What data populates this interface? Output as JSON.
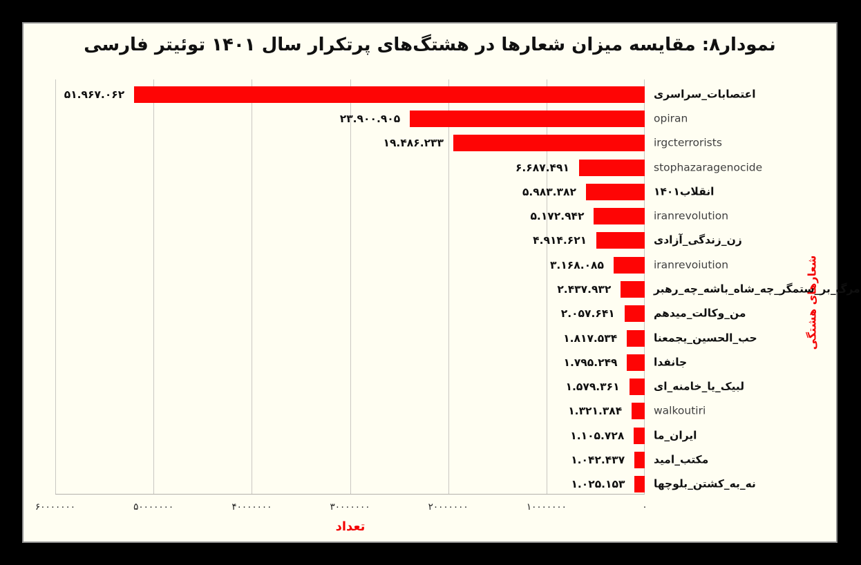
{
  "colors": {
    "frame": "#000000",
    "page_background": "#fffef2",
    "page_border": "#8f8f8f",
    "bar": "#fe0505",
    "accent_red_text": "#f30202",
    "gridline": "#c9c7c2",
    "text": "#101010",
    "latin_text": "#3f3f3f"
  },
  "chart_data": {
    "type": "bar",
    "orientation": "horizontal",
    "value_axis_direction": "rtl-zero-at-right",
    "grid": true,
    "legend": false,
    "title": "نمودار۸: مقایسه میزان شعارها در هشتگ‌های پرتکرار سال ۱۴۰۱ توئیتر فارسی",
    "xlabel": "تعداد",
    "ylabel": "شعارهای هشتگی",
    "xlim": [
      0,
      60000000
    ],
    "x_ticks": [
      {
        "value": 60000000,
        "label": "۶۰۰۰۰۰۰۰"
      },
      {
        "value": 50000000,
        "label": "۵۰۰۰۰۰۰۰"
      },
      {
        "value": 40000000,
        "label": "۴۰۰۰۰۰۰۰"
      },
      {
        "value": 30000000,
        "label": "۳۰۰۰۰۰۰۰"
      },
      {
        "value": 20000000,
        "label": "۲۰۰۰۰۰۰۰"
      },
      {
        "value": 10000000,
        "label": "۱۰۰۰۰۰۰۰"
      },
      {
        "value": 0,
        "label": "۰"
      }
    ],
    "categories": [
      "اعتصابات_سراسری",
      "opiran",
      "irgcterrorists",
      "stophazaragenocide",
      "انقلاب۱۴۰۱",
      "iranrevolution",
      "زن_زندگی_آزادی",
      "iranrevoiution",
      "مرگ_بر_ستمگر_چه_شاه_باشه_چه_رهبر",
      "من_وکالت_میدهم",
      "حب_الحسین_یجمعنا",
      "جانفدا",
      "لبیک_یا_خامنه_ای",
      "walkoutiri",
      "ایران_ما",
      "مکتب_امید",
      "نه_به_کشتن_بلوچها"
    ],
    "category_is_latin": [
      false,
      true,
      true,
      true,
      false,
      true,
      false,
      true,
      false,
      false,
      false,
      false,
      false,
      true,
      false,
      false,
      false
    ],
    "values": [
      51967062,
      23900905,
      19486233,
      6687491,
      5983382,
      5172942,
      4914621,
      3168085,
      2437932,
      2057641,
      1817534,
      1795249,
      1579361,
      1321384,
      1105728,
      1042437,
      1025153
    ],
    "value_labels": [
      "۵۱.۹۶۷.۰۶۲",
      "۲۳.۹۰۰.۹۰۵",
      "۱۹.۴۸۶.۲۳۳",
      "۶.۶۸۷.۴۹۱",
      "۵.۹۸۳.۳۸۲",
      "۵.۱۷۲.۹۴۲",
      "۴.۹۱۴.۶۲۱",
      "۳.۱۶۸.۰۸۵",
      "۲.۴۳۷.۹۳۲",
      "۲.۰۵۷.۶۴۱",
      "۱.۸۱۷.۵۳۴",
      "۱.۷۹۵.۲۴۹",
      "۱.۵۷۹.۳۶۱",
      "۱.۳۲۱.۳۸۴",
      "۱.۱۰۵.۷۲۸",
      "۱.۰۴۲.۴۳۷",
      "۱.۰۲۵.۱۵۳"
    ]
  }
}
